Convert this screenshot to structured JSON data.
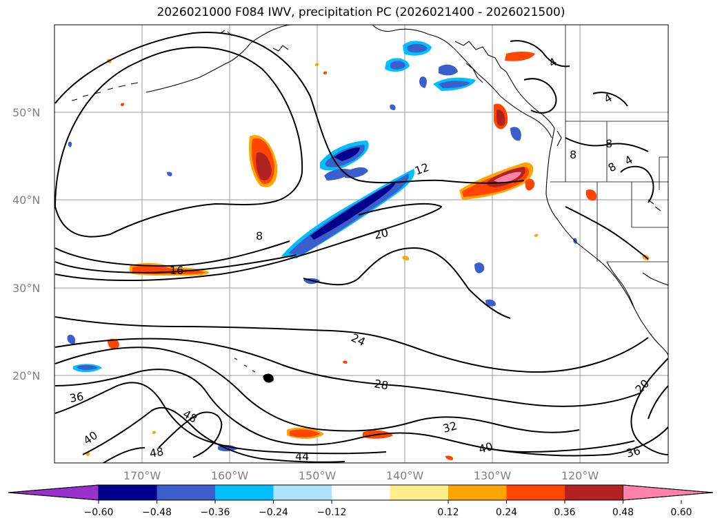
{
  "title": "2026021000 F084 IWV, precipitation PC (2026021400 - 2026021500)",
  "lat_labels": [
    "50°N",
    "40°N",
    "30°N",
    "20°N"
  ],
  "lon_labels": [
    "170°W",
    "160°W",
    "150°W",
    "140°W",
    "130°W",
    "120°W"
  ],
  "contour_labels": [
    "8",
    "12",
    "16",
    "20",
    "24",
    "28",
    "32",
    "36",
    "40",
    "44",
    "48",
    "48",
    "40",
    "36",
    "20",
    "8",
    "8",
    "4",
    "4",
    "4",
    "8"
  ],
  "colorbar": {
    "ticks": [
      "−0.60",
      "−0.48",
      "−0.36",
      "−0.24",
      "−0.12",
      "0.12",
      "0.24",
      "0.36",
      "0.48",
      "0.60"
    ],
    "colors": [
      "#9932CC",
      "#00008B",
      "#3A5FCD",
      "#00BFFF",
      "#ADE3FA",
      "#FFFFFF",
      "#FFEC8B",
      "#FFA500",
      "#FF4500",
      "#B22222",
      "#FF82AB"
    ]
  }
}
